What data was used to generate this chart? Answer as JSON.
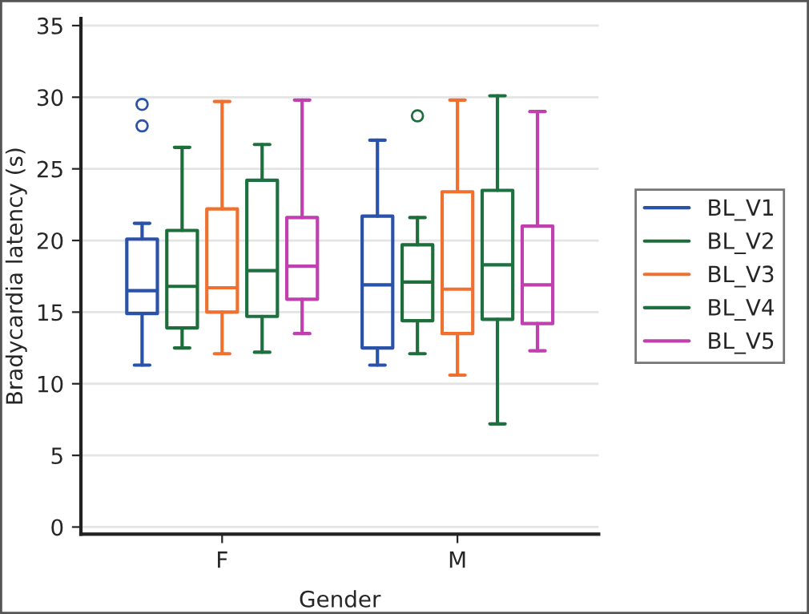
{
  "chart_data": {
    "type": "box",
    "xlabel": "Gender",
    "ylabel": "Bradycardia latency (s)",
    "categories": [
      "F",
      "M"
    ],
    "ylim": [
      -0.5,
      35.5
    ],
    "yticks": [
      0,
      5,
      10,
      15,
      20,
      25,
      30,
      35
    ],
    "grid": "y",
    "legend": "right",
    "series": [
      {
        "name": "BL_V1",
        "color": "#2a52a8",
        "boxes": [
          {
            "low": 11.3,
            "q1": 14.9,
            "median": 16.5,
            "q3": 20.1,
            "high": 21.2,
            "outliers": [
              29.5,
              28.0
            ]
          },
          {
            "low": 11.3,
            "q1": 12.5,
            "median": 16.9,
            "q3": 21.7,
            "high": 27.0
          }
        ]
      },
      {
        "name": "BL_V2",
        "color": "#1e6e3c",
        "boxes": [
          {
            "low": 12.5,
            "q1": 13.9,
            "median": 16.8,
            "q3": 20.7,
            "high": 26.5
          },
          {
            "low": 12.1,
            "q1": 14.4,
            "median": 17.1,
            "q3": 19.7,
            "high": 21.6,
            "outliers": [
              28.7
            ]
          }
        ]
      },
      {
        "name": "BL_V3",
        "color": "#f07030",
        "boxes": [
          {
            "low": 12.1,
            "q1": 15.0,
            "median": 16.7,
            "q3": 22.2,
            "high": 29.7
          },
          {
            "low": 10.6,
            "q1": 13.5,
            "median": 16.6,
            "q3": 23.4,
            "high": 29.8
          }
        ]
      },
      {
        "name": "BL_V4",
        "color": "#1e7040",
        "boxes": [
          {
            "low": 12.2,
            "q1": 14.7,
            "median": 17.9,
            "q3": 24.2,
            "high": 26.7
          },
          {
            "low": 7.2,
            "q1": 14.5,
            "median": 18.3,
            "q3": 23.5,
            "high": 30.1
          }
        ]
      },
      {
        "name": "BL_V5",
        "color": "#c040b0",
        "boxes": [
          {
            "low": 13.5,
            "q1": 15.9,
            "median": 18.2,
            "q3": 21.6,
            "high": 29.8
          },
          {
            "low": 12.3,
            "q1": 14.2,
            "median": 16.9,
            "q3": 21.0,
            "high": 29.0
          }
        ]
      }
    ]
  }
}
